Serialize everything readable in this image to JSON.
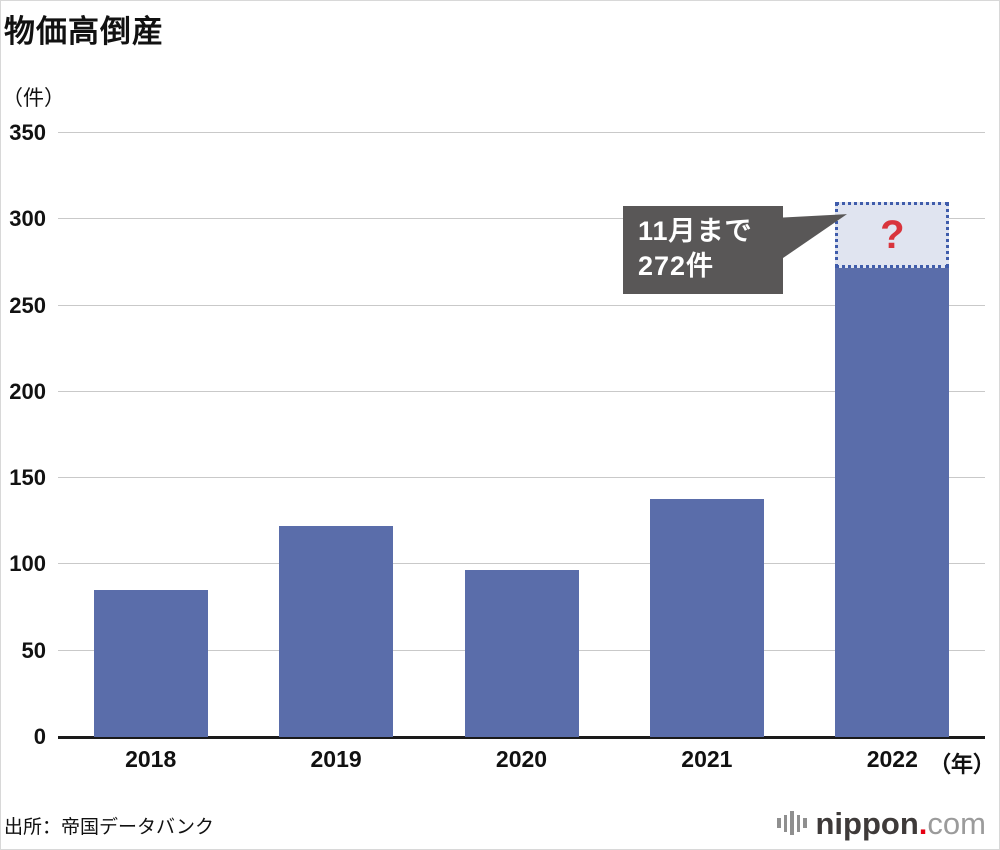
{
  "title": "物価高倒産",
  "y_unit_label": "（件）",
  "x_unit_label": "（年）",
  "source": "出所：帝国データバンク",
  "annotation": {
    "line1": "11月まで",
    "line2": "272件"
  },
  "projection_mark": "?",
  "logo": {
    "name": "nippon",
    "dot": ".",
    "tld": "com"
  },
  "colors": {
    "bar": "#5a6daa",
    "annotation_bg": "#595757",
    "projection_fill": "#e0e4f0",
    "projection_border": "#3f5cab",
    "question_red": "#d9343c"
  },
  "chart_data": {
    "type": "bar",
    "title": "物価高倒産",
    "categories": [
      "2018",
      "2019",
      "2020",
      "2021",
      "2022"
    ],
    "values": [
      85,
      122,
      97,
      138,
      272
    ],
    "projection": {
      "category": "2022",
      "from": 272,
      "to": 310,
      "label": "?"
    },
    "annotation": "11月まで272件",
    "xlabel": "（年）",
    "ylabel": "（件）",
    "ylim": [
      0,
      350
    ],
    "yticks": [
      0,
      50,
      100,
      150,
      200,
      250,
      300,
      350
    ],
    "grid": true,
    "legend": false
  }
}
